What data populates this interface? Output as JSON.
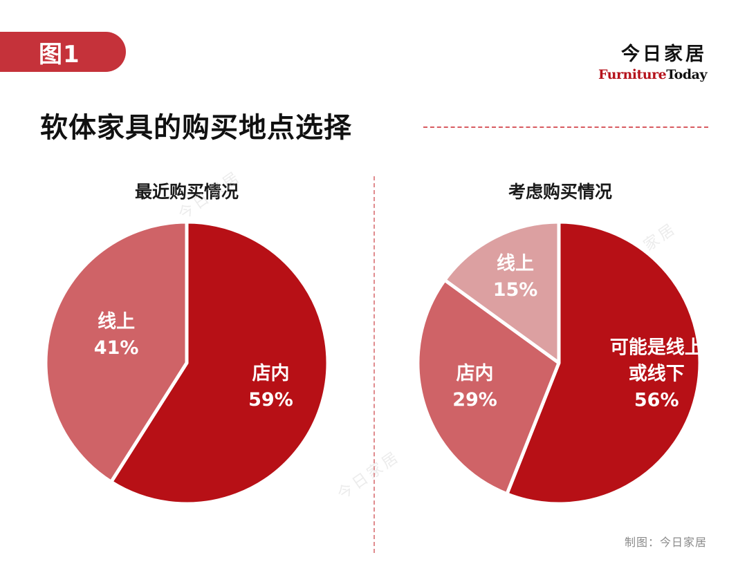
{
  "header": {
    "figure_label": "图1",
    "brand_cn": "今日家居",
    "brand_en_part1": "Furniture",
    "brand_en_part2": "Today"
  },
  "title": "软体家具的购买地点选择",
  "footer": {
    "credit": "制图：今日家居"
  },
  "watermark": {
    "text": "今日家居"
  },
  "colors": {
    "dark_red": "#b71016",
    "mid_red": "#cf6367",
    "light_red": "#dca0a1",
    "accent": "#c5323a"
  },
  "chart_data": [
    {
      "type": "pie",
      "title": "最近购买情况",
      "slices": [
        {
          "label": "店内",
          "value": 59,
          "pct": "59%",
          "color": "#b71016"
        },
        {
          "label": "线上",
          "value": 41,
          "pct": "41%",
          "color": "#cf6367"
        }
      ]
    },
    {
      "type": "pie",
      "title": "考虑购买情况",
      "slices": [
        {
          "label": "可能是线上或线下",
          "label_lines": [
            "可能是线上",
            "或线下"
          ],
          "value": 56,
          "pct": "56%",
          "color": "#b71016"
        },
        {
          "label": "店内",
          "value": 29,
          "pct": "29%",
          "color": "#cf6367"
        },
        {
          "label": "线上",
          "value": 15,
          "pct": "15%",
          "color": "#dca0a1"
        }
      ]
    }
  ]
}
